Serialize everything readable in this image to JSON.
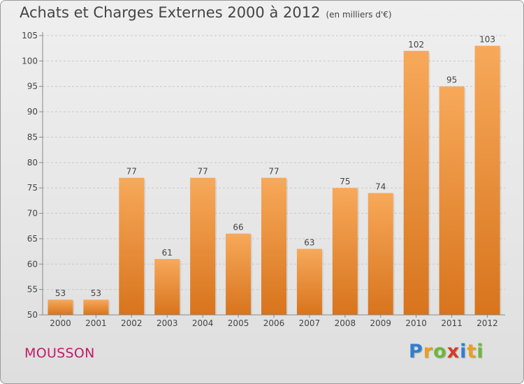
{
  "title": "Achats et Charges Externes 2000 à 2012",
  "subtitle": "(en milliers d'€)",
  "commune": "MOUSSON",
  "logo": {
    "letters": [
      "P",
      "r",
      "o",
      "x",
      "i",
      "t",
      "i"
    ],
    "colors": [
      "#2f7fd0",
      "#e8a020",
      "#6cb83a",
      "#d43a2a",
      "#2f7fd0",
      "#e8a020",
      "#6cb83a"
    ]
  },
  "colors": {
    "bar_top": "#f7a95a",
    "bar_bottom": "#d8741d",
    "text": "#444444",
    "commune": "#c21a6a"
  },
  "chart_data": {
    "type": "bar",
    "title": "Achats et Charges Externes 2000 à 2012",
    "subtitle": "(en milliers d'€)",
    "categories": [
      "2000",
      "2001",
      "2002",
      "2003",
      "2004",
      "2005",
      "2006",
      "2007",
      "2008",
      "2009",
      "2010",
      "2011",
      "2012"
    ],
    "values": [
      53,
      53,
      77,
      61,
      77,
      66,
      77,
      63,
      75,
      74,
      102,
      95,
      103
    ],
    "ylim": [
      50,
      105
    ],
    "yticks": [
      50,
      55,
      60,
      65,
      70,
      75,
      80,
      85,
      90,
      95,
      100,
      105
    ],
    "grid": true,
    "data_labels": true
  }
}
